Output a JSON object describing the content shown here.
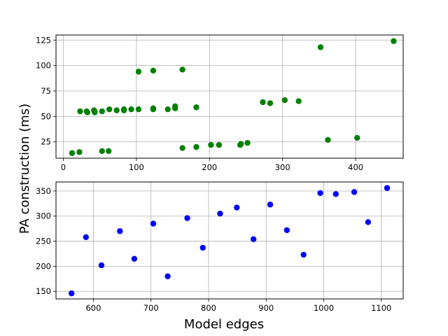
{
  "shared_labels": {
    "ylabel": "PA construction (ms)",
    "xlabel": "Model edges"
  },
  "chart_data": [
    {
      "type": "scatter",
      "name": "top-scatter",
      "color": "#008000",
      "grid": true,
      "xlim": [
        -10,
        465
      ],
      "ylim": [
        9,
        130
      ],
      "xticks": [
        0,
        100,
        200,
        300,
        400
      ],
      "yticks": [
        25,
        50,
        75,
        100,
        125
      ],
      "points": [
        [
          12,
          14
        ],
        [
          22,
          15
        ],
        [
          23,
          55
        ],
        [
          32,
          55
        ],
        [
          33,
          54
        ],
        [
          42,
          56
        ],
        [
          43,
          55
        ],
        [
          43,
          54
        ],
        [
          53,
          55
        ],
        [
          53,
          16
        ],
        [
          62,
          16
        ],
        [
          63,
          57
        ],
        [
          73,
          56
        ],
        [
          83,
          57
        ],
        [
          83,
          56
        ],
        [
          93,
          57
        ],
        [
          103,
          57
        ],
        [
          103,
          94
        ],
        [
          123,
          95
        ],
        [
          123,
          58
        ],
        [
          123,
          57
        ],
        [
          143,
          57
        ],
        [
          153,
          60
        ],
        [
          153,
          58
        ],
        [
          163,
          96
        ],
        [
          163,
          19
        ],
        [
          182,
          59
        ],
        [
          182,
          20
        ],
        [
          202,
          22
        ],
        [
          213,
          22
        ],
        [
          242,
          22
        ],
        [
          243,
          23
        ],
        [
          252,
          24
        ],
        [
          273,
          64
        ],
        [
          283,
          63
        ],
        [
          303,
          66
        ],
        [
          322,
          65
        ],
        [
          352,
          118
        ],
        [
          362,
          27
        ],
        [
          402,
          29
        ],
        [
          452,
          124
        ]
      ]
    },
    {
      "type": "scatter",
      "name": "bottom-scatter",
      "color": "#0000ff",
      "grid": true,
      "xlim": [
        535,
        1138
      ],
      "ylim": [
        135,
        368
      ],
      "xticks": [
        600,
        700,
        800,
        900,
        1000,
        1100
      ],
      "yticks": [
        150,
        200,
        250,
        300,
        350
      ],
      "xlabel": "Model edges",
      "points": [
        [
          562,
          146
        ],
        [
          587,
          258
        ],
        [
          614,
          202
        ],
        [
          646,
          270
        ],
        [
          671,
          215
        ],
        [
          704,
          285
        ],
        [
          729,
          180
        ],
        [
          763,
          296
        ],
        [
          790,
          237
        ],
        [
          820,
          305
        ],
        [
          849,
          317
        ],
        [
          878,
          254
        ],
        [
          907,
          323
        ],
        [
          936,
          272
        ],
        [
          965,
          223
        ],
        [
          994,
          346
        ],
        [
          1021,
          344
        ],
        [
          1053,
          348
        ],
        [
          1077,
          288
        ],
        [
          1110,
          356
        ]
      ]
    }
  ]
}
